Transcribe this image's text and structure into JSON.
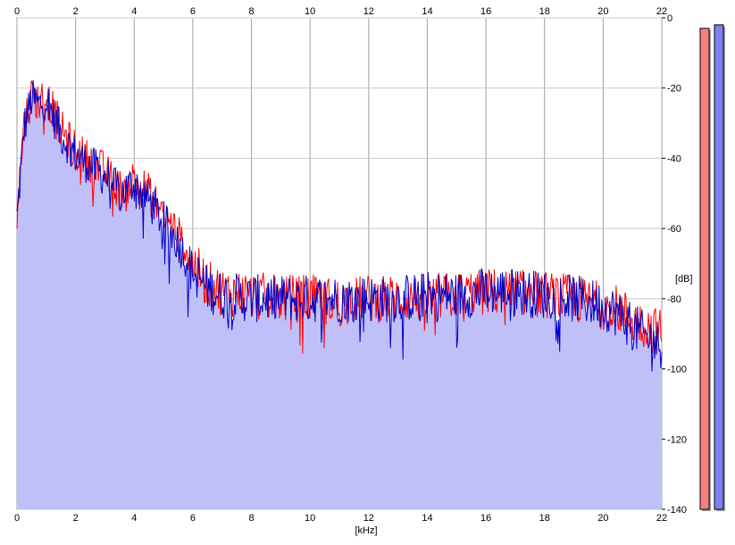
{
  "chart_data": {
    "type": "area",
    "title": "",
    "xlabel": "[kHz]",
    "ylabel": "[dB]",
    "xlim": [
      0,
      22
    ],
    "ylim": [
      -140,
      0
    ],
    "x_ticks": [
      "0",
      "2",
      "4",
      "6",
      "8",
      "10",
      "12",
      "14",
      "16",
      "18",
      "20",
      "22"
    ],
    "y_ticks": [
      "0",
      "-20",
      "-40",
      "-60",
      "-80",
      "-100",
      "-120",
      "-140"
    ],
    "grid": true,
    "series": [
      {
        "color": "#ff0000",
        "x": [
          0,
          0.25,
          0.5,
          0.75,
          1.0,
          1.25,
          1.5,
          2.0,
          2.5,
          3.0,
          3.5,
          4.0,
          4.5,
          5.0,
          5.5,
          6.0,
          6.5,
          7.0,
          8.0,
          9.0,
          10.0,
          11.0,
          12.0,
          13.0,
          14.0,
          15.0,
          16.0,
          17.0,
          18.0,
          19.0,
          20.0,
          20.5,
          21.0,
          21.5,
          22.0
        ],
        "y": [
          -55,
          -30,
          -22,
          -24,
          -22,
          -27,
          -32,
          -38,
          -41,
          -44,
          -49,
          -46,
          -50,
          -56,
          -62,
          -70,
          -76,
          -78,
          -79,
          -80,
          -80,
          -81,
          -80,
          -80,
          -80,
          -79,
          -78,
          -78,
          -79,
          -80,
          -82,
          -83,
          -86,
          -88,
          -90
        ]
      },
      {
        "color": "#0000c8",
        "x": [
          0,
          0.25,
          0.5,
          0.75,
          1.0,
          1.25,
          1.5,
          2.0,
          2.5,
          3.0,
          3.5,
          4.0,
          4.5,
          5.0,
          5.5,
          6.0,
          6.5,
          7.0,
          8.0,
          9.0,
          10.0,
          11.0,
          12.0,
          13.0,
          14.0,
          15.0,
          16.0,
          17.0,
          18.0,
          19.0,
          20.0,
          20.5,
          21.0,
          21.5,
          22.0
        ],
        "y": [
          -57,
          -31,
          -23,
          -25,
          -23,
          -28,
          -33,
          -39,
          -42,
          -45,
          -50,
          -47,
          -52,
          -58,
          -64,
          -72,
          -77,
          -79,
          -80,
          -80,
          -80,
          -80,
          -80,
          -80,
          -79,
          -79,
          -78,
          -78,
          -79,
          -80,
          -82,
          -84,
          -88,
          -91,
          -93
        ]
      }
    ],
    "level_meters": [
      {
        "color": "#f58080",
        "top_db": -3
      },
      {
        "color": "#8080f5",
        "top_db": -2
      }
    ]
  }
}
